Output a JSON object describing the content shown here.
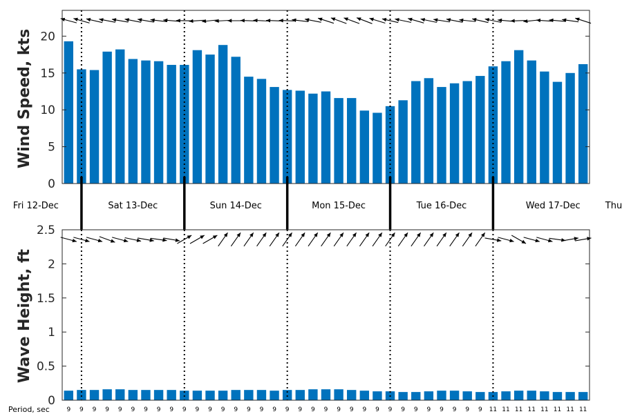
{
  "colors": {
    "bar": "#0072BD",
    "axis": "#262626",
    "arrow": "#000000"
  },
  "chart_data": [
    {
      "type": "bar",
      "ylabel": "Wind Speed, kts",
      "ylim": [
        0,
        23.5
      ],
      "yticks": [
        0,
        5,
        10,
        15,
        20
      ],
      "values": [
        19.3,
        15.5,
        15.4,
        17.9,
        18.2,
        16.9,
        16.7,
        16.6,
        16.1,
        16.1,
        18.1,
        17.5,
        18.8,
        17.2,
        14.5,
        14.2,
        13.1,
        12.7,
        12.6,
        12.2,
        12.5,
        11.6,
        11.6,
        9.9,
        9.6,
        10.5,
        11.3,
        13.9,
        14.3,
        13.1,
        13.6,
        13.9,
        14.6,
        15.9,
        16.6,
        18.1,
        16.7,
        15.2,
        13.8,
        15.0,
        16.2
      ],
      "direction_arrows": [
        165,
        164,
        167,
        169,
        170,
        169,
        170,
        173,
        175,
        179,
        184,
        186,
        183,
        180,
        178,
        177,
        178,
        178,
        173,
        169,
        162,
        160,
        160,
        159,
        163,
        167,
        168,
        164,
        168,
        171,
        169,
        174,
        167,
        168,
        175,
        182,
        186,
        176,
        175,
        172,
        162
      ]
    },
    {
      "type": "bar",
      "ylabel": "Wave Height, ft",
      "ylim": [
        0,
        2.5
      ],
      "yticks": [
        0,
        0.5,
        1,
        1.5,
        2,
        2.5
      ],
      "ytick_labels": [
        "0",
        "0.5",
        "1",
        "1.5",
        "2",
        "2.5"
      ],
      "values": [
        0.14,
        0.15,
        0.15,
        0.16,
        0.16,
        0.15,
        0.15,
        0.15,
        0.15,
        0.14,
        0.14,
        0.14,
        0.14,
        0.15,
        0.15,
        0.15,
        0.14,
        0.15,
        0.15,
        0.16,
        0.16,
        0.16,
        0.15,
        0.14,
        0.13,
        0.13,
        0.12,
        0.12,
        0.13,
        0.14,
        0.14,
        0.13,
        0.12,
        0.12,
        0.13,
        0.14,
        0.14,
        0.13,
        0.12,
        0.12,
        0.12
      ],
      "direction_arrows": [
        -15,
        -15,
        -15,
        -20,
        -15,
        -12,
        -10,
        -8,
        -10,
        30,
        30,
        30,
        55,
        55,
        55,
        55,
        55,
        55,
        55,
        55,
        55,
        55,
        55,
        55,
        55,
        55,
        55,
        55,
        55,
        55,
        55,
        55,
        55,
        -10,
        -15,
        -30,
        -15,
        -15,
        -8,
        10,
        10
      ],
      "period_title": "Period, sec",
      "periods": [
        "9",
        "9",
        "9",
        "9",
        "9",
        "9",
        "9",
        "9",
        "9",
        "9",
        "9",
        "9",
        "9",
        "9",
        "9",
        "9",
        "9",
        "9",
        "9",
        "9",
        "9",
        "9",
        "9",
        "9",
        "9",
        "9",
        "9",
        "9",
        "9",
        "9",
        "9",
        "9",
        "9",
        "11",
        "11",
        "11",
        "11",
        "11",
        "11",
        "11",
        "11"
      ]
    }
  ],
  "days": [
    "Fri 12-Dec",
    "Sat 13-Dec",
    "Sun 14-Dec",
    "Mon 15-Dec",
    "Tue 16-Dec",
    "Wed 17-Dec",
    "Thu"
  ]
}
